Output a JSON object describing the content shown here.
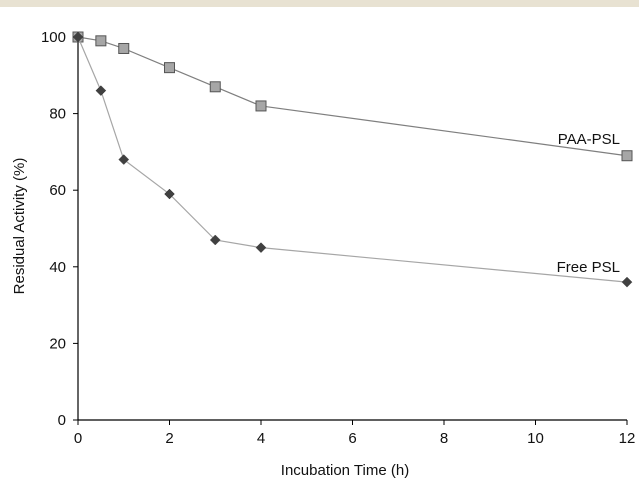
{
  "chart_data": {
    "type": "line",
    "title": "",
    "xlabel": "Incubation Time (h)",
    "ylabel": "Residual Activity (%)",
    "xlim": [
      0,
      12
    ],
    "ylim": [
      0,
      100
    ],
    "x_ticks": [
      "0",
      "2",
      "4",
      "6",
      "8",
      "10",
      "12"
    ],
    "y_ticks": [
      "0",
      "20",
      "40",
      "60",
      "80",
      "100"
    ],
    "grid": false,
    "legend": "none",
    "series": [
      {
        "name": "PAA-PSL",
        "marker": "square",
        "marker_color": "#a6a6a6",
        "line_color": "#7f7f7f",
        "x": [
          0,
          0.5,
          1,
          2,
          3,
          4,
          12
        ],
        "y": [
          100,
          99,
          97,
          92,
          87,
          82,
          69
        ]
      },
      {
        "name": "Free PSL",
        "marker": "diamond",
        "marker_color": "#404040",
        "line_color": "#a6a6a6",
        "x": [
          0,
          0.5,
          1,
          2,
          3,
          4,
          12
        ],
        "y": [
          100,
          86,
          68,
          59,
          47,
          45,
          36
        ]
      }
    ]
  },
  "colors": {
    "top_band": "#e8e2d2",
    "axis": "#000000"
  }
}
